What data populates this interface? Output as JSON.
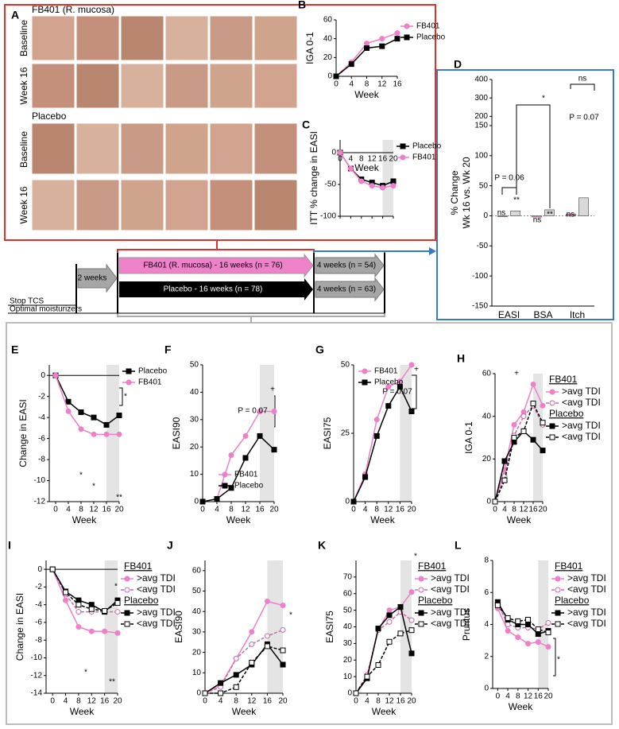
{
  "panel_a": {
    "label": "A",
    "groups": [
      {
        "title": "FB401 (R. mucosa)",
        "rows": [
          "Baseline",
          "Week 16"
        ]
      },
      {
        "title": "Placebo",
        "rows": [
          "Baseline",
          "Week 16"
        ]
      }
    ]
  },
  "timeline": {
    "run_in": "2 weeks",
    "fb401_arm": "FB401 (R. mucosa) - 16 weeks (n = 76)",
    "placebo_arm": "Placebo - 16 weeks (n = 78)",
    "fb401_followup": "4 weeks (n = 54)",
    "placebo_followup": "4 weeks (n = 63)",
    "stop_tcs": "Stop TCS",
    "moisturizers": "Optimal moisturizers"
  },
  "chart_data": [
    {
      "type": "line",
      "label": "B",
      "xlabel": "Week",
      "ylabel": "IGA 0-1",
      "x": [
        0,
        4,
        8,
        12,
        16
      ],
      "xlim": [
        0,
        16
      ],
      "xticks": [
        0,
        4,
        8,
        12,
        16
      ],
      "ylim": [
        0,
        60
      ],
      "yticks": [
        0,
        20,
        40,
        60
      ],
      "legend": "right",
      "series": [
        {
          "name": "FB401",
          "color": "#ee7fc8",
          "marker": "circle",
          "filled": true,
          "dash": false,
          "values": [
            0,
            15,
            35,
            40,
            46
          ]
        },
        {
          "name": "Placebo",
          "color": "#000000",
          "marker": "square",
          "filled": true,
          "dash": false,
          "values": [
            0,
            13,
            30,
            32,
            40
          ]
        }
      ]
    },
    {
      "type": "line",
      "label": "C",
      "xlabel": "Week",
      "ylabel": "ITT % change in EASI",
      "x": [
        0,
        4,
        8,
        12,
        16,
        20
      ],
      "xlim": [
        0,
        20
      ],
      "xticks": [
        0,
        4,
        8,
        12,
        16,
        20
      ],
      "ylim": [
        -100,
        20
      ],
      "yticks": [
        0,
        -50,
        -100
      ],
      "shade": [
        16,
        20
      ],
      "zero_line": true,
      "inner_xlabels": true,
      "legend": "right",
      "series": [
        {
          "name": "Placebo",
          "color": "#000000",
          "marker": "square",
          "filled": true,
          "dash": false,
          "values": [
            0,
            -25,
            -42,
            -47,
            -52,
            -45
          ]
        },
        {
          "name": "FB401",
          "color": "#ee7fc8",
          "marker": "circle",
          "filled": true,
          "dash": false,
          "values": [
            0,
            -25,
            -45,
            -52,
            -55,
            -52
          ]
        }
      ]
    },
    {
      "type": "bar",
      "label": "D",
      "ylabel": [
        "% Change",
        "Wk 16 vs. Wk 20"
      ],
      "categories": [
        "EASI",
        "BSA",
        "Itch"
      ],
      "ylim": [
        -150,
        400
      ],
      "break_at": 150,
      "yticks": [
        -150,
        -100,
        -50,
        0,
        50,
        100,
        150,
        200,
        300,
        400
      ],
      "series": [
        {
          "color": "#ee9fd2",
          "values": [
            0,
            -2,
            3
          ]
        },
        {
          "color": "#d9d9d9",
          "values": [
            8,
            10,
            30
          ]
        }
      ],
      "annotations": [
        "ns",
        "**",
        "P = 0.06",
        "ns",
        "**",
        "*",
        "ns",
        "ns",
        "P = 0.07"
      ]
    },
    {
      "type": "line",
      "label": "E",
      "xlabel": "Week",
      "ylabel": "Change in EASI",
      "x": [
        0,
        4,
        8,
        12,
        16,
        20
      ],
      "xlim": [
        -2,
        20
      ],
      "xticks": [
        0,
        4,
        8,
        12,
        16,
        20
      ],
      "ylim": [
        -12,
        1
      ],
      "yticks": [
        0,
        -2,
        -4,
        -6,
        -8,
        -10,
        -12
      ],
      "shade": [
        16,
        20
      ],
      "zero_line": true,
      "legend": "right",
      "series": [
        {
          "name": "Placebo",
          "color": "#000000",
          "marker": "square",
          "filled": true,
          "dash": false,
          "values": [
            0,
            -2.5,
            -3.5,
            -4,
            -4.7,
            -3.8
          ]
        },
        {
          "name": "FB401",
          "color": "#ee7fc8",
          "marker": "circle",
          "filled": true,
          "dash": false,
          "values": [
            0,
            -3.4,
            -5.1,
            -5.6,
            -5.6,
            -5.6
          ]
        }
      ],
      "annotations": [
        "*",
        "*",
        "*",
        "**"
      ]
    },
    {
      "type": "line",
      "label": "F",
      "xlabel": "Week",
      "ylabel": "EASI90",
      "x": [
        0,
        4,
        8,
        12,
        16,
        20
      ],
      "xlim": [
        0,
        20
      ],
      "xticks": [
        0,
        4,
        8,
        12,
        16,
        20
      ],
      "ylim": [
        0,
        50
      ],
      "yticks": [
        0,
        10,
        20,
        30,
        40,
        50
      ],
      "shade": [
        16,
        20
      ],
      "legend": "lower right",
      "series": [
        {
          "name": "FB401",
          "color": "#ee7fc8",
          "marker": "circle",
          "filled": true,
          "dash": false,
          "values": [
            0,
            1,
            17,
            24,
            33,
            33
          ]
        },
        {
          "name": "Placebo",
          "color": "#000000",
          "marker": "square",
          "filled": true,
          "dash": false,
          "values": [
            0,
            1,
            5,
            16,
            24,
            19
          ]
        }
      ],
      "annotations": [
        "+",
        "P = 0.07"
      ]
    },
    {
      "type": "line",
      "label": "G",
      "xlabel": "Week",
      "ylabel": "EASI75",
      "x": [
        0,
        4,
        8,
        12,
        16,
        20
      ],
      "xlim": [
        0,
        20
      ],
      "xticks": [
        0,
        4,
        8,
        12,
        16,
        20
      ],
      "ylim": [
        0,
        50
      ],
      "yticks": [
        0,
        25,
        50
      ],
      "shade": [
        16,
        20
      ],
      "legend": "upper left",
      "series": [
        {
          "name": "FB401",
          "color": "#ee7fc8",
          "marker": "circle",
          "filled": true,
          "dash": false,
          "values": [
            0,
            10,
            30,
            42,
            44,
            50
          ]
        },
        {
          "name": "Placebo",
          "color": "#000000",
          "marker": "square",
          "filled": true,
          "dash": false,
          "values": [
            0,
            9,
            24,
            35,
            42,
            33
          ]
        }
      ],
      "annotations": [
        "+",
        "P = 0.07"
      ]
    },
    {
      "type": "line",
      "label": "H",
      "xlabel": "Week",
      "ylabel": "IGA 0-1",
      "x": [
        0,
        4,
        8,
        12,
        16,
        20
      ],
      "xlim": [
        0,
        20
      ],
      "xticks": [
        0,
        4,
        8,
        12,
        16,
        20
      ],
      "ylim": [
        0,
        60
      ],
      "yticks": [
        0,
        20,
        40,
        60
      ],
      "shade": [
        16,
        20
      ],
      "legend": "right",
      "legend_groups": [
        "FB401",
        "Placebo"
      ],
      "series": [
        {
          "name": ">avg TDI",
          "group": 0,
          "color": "#ee7fc8",
          "marker": "circle",
          "filled": true,
          "dash": false,
          "values": [
            0,
            15,
            36,
            42,
            55,
            45
          ]
        },
        {
          "name": "<avg TDI",
          "group": 0,
          "color": "#c86aa8",
          "marker": "circle",
          "filled": false,
          "dash": true,
          "values": [
            0,
            12,
            31,
            40,
            45,
            36
          ]
        },
        {
          "name": ">avg TDI",
          "group": 1,
          "color": "#000000",
          "marker": "square",
          "filled": true,
          "dash": false,
          "values": [
            0,
            19,
            28,
            33,
            29,
            24
          ]
        },
        {
          "name": "<avg TDI",
          "group": 1,
          "color": "#000000",
          "marker": "square",
          "filled": false,
          "dash": true,
          "values": [
            0,
            10,
            30,
            33,
            46,
            37
          ]
        }
      ],
      "annotations": [
        "+"
      ]
    },
    {
      "type": "line",
      "label": "I",
      "xlabel": "Week",
      "ylabel": "Change in EASI",
      "x": [
        0,
        4,
        8,
        12,
        16,
        20
      ],
      "xlim": [
        -2,
        20
      ],
      "xticks": [
        0,
        4,
        8,
        12,
        16,
        20
      ],
      "ylim": [
        -14,
        1
      ],
      "yticks": [
        0,
        -2,
        -4,
        -6,
        -8,
        -10,
        -12,
        -14
      ],
      "shade": [
        16,
        20
      ],
      "zero_line": true,
      "legend": "right",
      "legend_groups": [
        "FB401",
        "Placebo"
      ],
      "series": [
        {
          "name": ">avg TDI",
          "group": 0,
          "color": "#ee7fc8",
          "marker": "circle",
          "filled": true,
          "dash": false,
          "values": [
            0,
            -3.5,
            -6.5,
            -7,
            -7,
            -7.2
          ]
        },
        {
          "name": "<avg TDI",
          "group": 0,
          "color": "#c86aa8",
          "marker": "circle",
          "filled": false,
          "dash": true,
          "values": [
            0,
            -2.8,
            -4.8,
            -4.8,
            -4.8,
            -4.8
          ]
        },
        {
          "name": ">avg TDI",
          "group": 1,
          "color": "#000000",
          "marker": "square",
          "filled": true,
          "dash": false,
          "values": [
            0,
            -2.5,
            -3.5,
            -4,
            -4.8,
            -3.5
          ]
        },
        {
          "name": "<avg TDI",
          "group": 1,
          "color": "#000000",
          "marker": "square",
          "filled": false,
          "dash": true,
          "values": [
            0,
            -2.6,
            -4,
            -4.5,
            -4.7,
            -3.8
          ]
        }
      ],
      "annotations": [
        "*",
        "*",
        "**"
      ]
    },
    {
      "type": "line",
      "label": "J",
      "xlabel": "Week",
      "ylabel": "EASI90",
      "x": [
        0,
        4,
        8,
        12,
        16,
        20
      ],
      "xlim": [
        0,
        20
      ],
      "xticks": [
        0,
        4,
        8,
        12,
        16,
        20
      ],
      "ylim": [
        0,
        65
      ],
      "yticks": [
        0,
        10,
        20,
        30,
        40,
        50,
        60
      ],
      "shade": [
        16,
        20
      ],
      "series": [
        {
          "color": "#ee7fc8",
          "marker": "circle",
          "filled": true,
          "dash": false,
          "values": [
            0,
            4,
            17,
            30,
            45,
            43
          ]
        },
        {
          "color": "#c86aa8",
          "marker": "circle",
          "filled": false,
          "dash": true,
          "values": [
            0,
            3,
            17,
            24,
            28,
            31
          ]
        },
        {
          "color": "#000000",
          "marker": "square",
          "filled": true,
          "dash": false,
          "values": [
            0,
            5,
            9,
            14,
            24,
            14
          ]
        },
        {
          "color": "#000000",
          "marker": "square",
          "filled": false,
          "dash": true,
          "values": [
            0,
            0,
            3,
            15,
            23,
            21
          ]
        }
      ],
      "annotations": [
        "*"
      ]
    },
    {
      "type": "line",
      "label": "K",
      "xlabel": "Week",
      "ylabel": "EASI75",
      "x": [
        0,
        4,
        8,
        12,
        16,
        20
      ],
      "xlim": [
        0,
        20
      ],
      "xticks": [
        0,
        4,
        8,
        12,
        16,
        20
      ],
      "ylim": [
        0,
        80
      ],
      "yticks": [
        0,
        10,
        20,
        30,
        40,
        50,
        60,
        70
      ],
      "shade": [
        16,
        20
      ],
      "legend": "right",
      "legend_groups": [
        "FB401",
        "Placebo"
      ],
      "series": [
        {
          "name": ">avg TDI",
          "group": 0,
          "color": "#ee7fc8",
          "marker": "circle",
          "filled": true,
          "dash": false,
          "values": [
            0,
            10,
            38,
            50,
            52,
            61
          ]
        },
        {
          "name": "<avg TDI",
          "group": 0,
          "color": "#c86aa8",
          "marker": "circle",
          "filled": false,
          "dash": true,
          "values": [
            0,
            11,
            38,
            43,
            49,
            44
          ]
        },
        {
          "name": ">avg TDI",
          "group": 1,
          "color": "#000000",
          "marker": "square",
          "filled": true,
          "dash": false,
          "values": [
            0,
            9,
            39,
            47,
            52,
            24
          ]
        },
        {
          "name": "<avg TDI",
          "group": 1,
          "color": "#000000",
          "marker": "square",
          "filled": false,
          "dash": true,
          "values": [
            0,
            10,
            17,
            31,
            36,
            38
          ]
        }
      ],
      "annotations": [
        "*"
      ]
    },
    {
      "type": "line",
      "label": "L",
      "xlabel": "Week",
      "ylabel": "Pruritus",
      "x": [
        0,
        4,
        8,
        12,
        16,
        20
      ],
      "xlim": [
        -2,
        20
      ],
      "xticks": [
        0,
        4,
        8,
        12,
        16,
        20
      ],
      "ylim": [
        0,
        8
      ],
      "yticks": [
        0,
        2,
        4,
        6,
        8
      ],
      "shade": [
        16,
        20
      ],
      "legend": "right",
      "legend_groups": [
        "FB401",
        "Placebo"
      ],
      "series": [
        {
          "name": ">avg TDI",
          "group": 0,
          "color": "#ee7fc8",
          "marker": "circle",
          "filled": true,
          "dash": false,
          "values": [
            5,
            3.6,
            3.2,
            2.8,
            2.9,
            2.6
          ]
        },
        {
          "name": "<avg TDI",
          "group": 0,
          "color": "#c86aa8",
          "marker": "circle",
          "filled": false,
          "dash": true,
          "values": [
            5.3,
            4,
            3.8,
            3.8,
            3.7,
            4.1
          ]
        },
        {
          "name": ">avg TDI",
          "group": 1,
          "color": "#000000",
          "marker": "square",
          "filled": true,
          "dash": false,
          "values": [
            5.4,
            4.3,
            4,
            4,
            3.4,
            3.6
          ]
        },
        {
          "name": "<avg TDI",
          "group": 1,
          "color": "#000000",
          "marker": "square",
          "filled": false,
          "dash": true,
          "values": [
            5.2,
            4.4,
            4.2,
            4.3,
            3.7,
            3.5
          ]
        }
      ],
      "annotations": [
        "*"
      ]
    }
  ]
}
